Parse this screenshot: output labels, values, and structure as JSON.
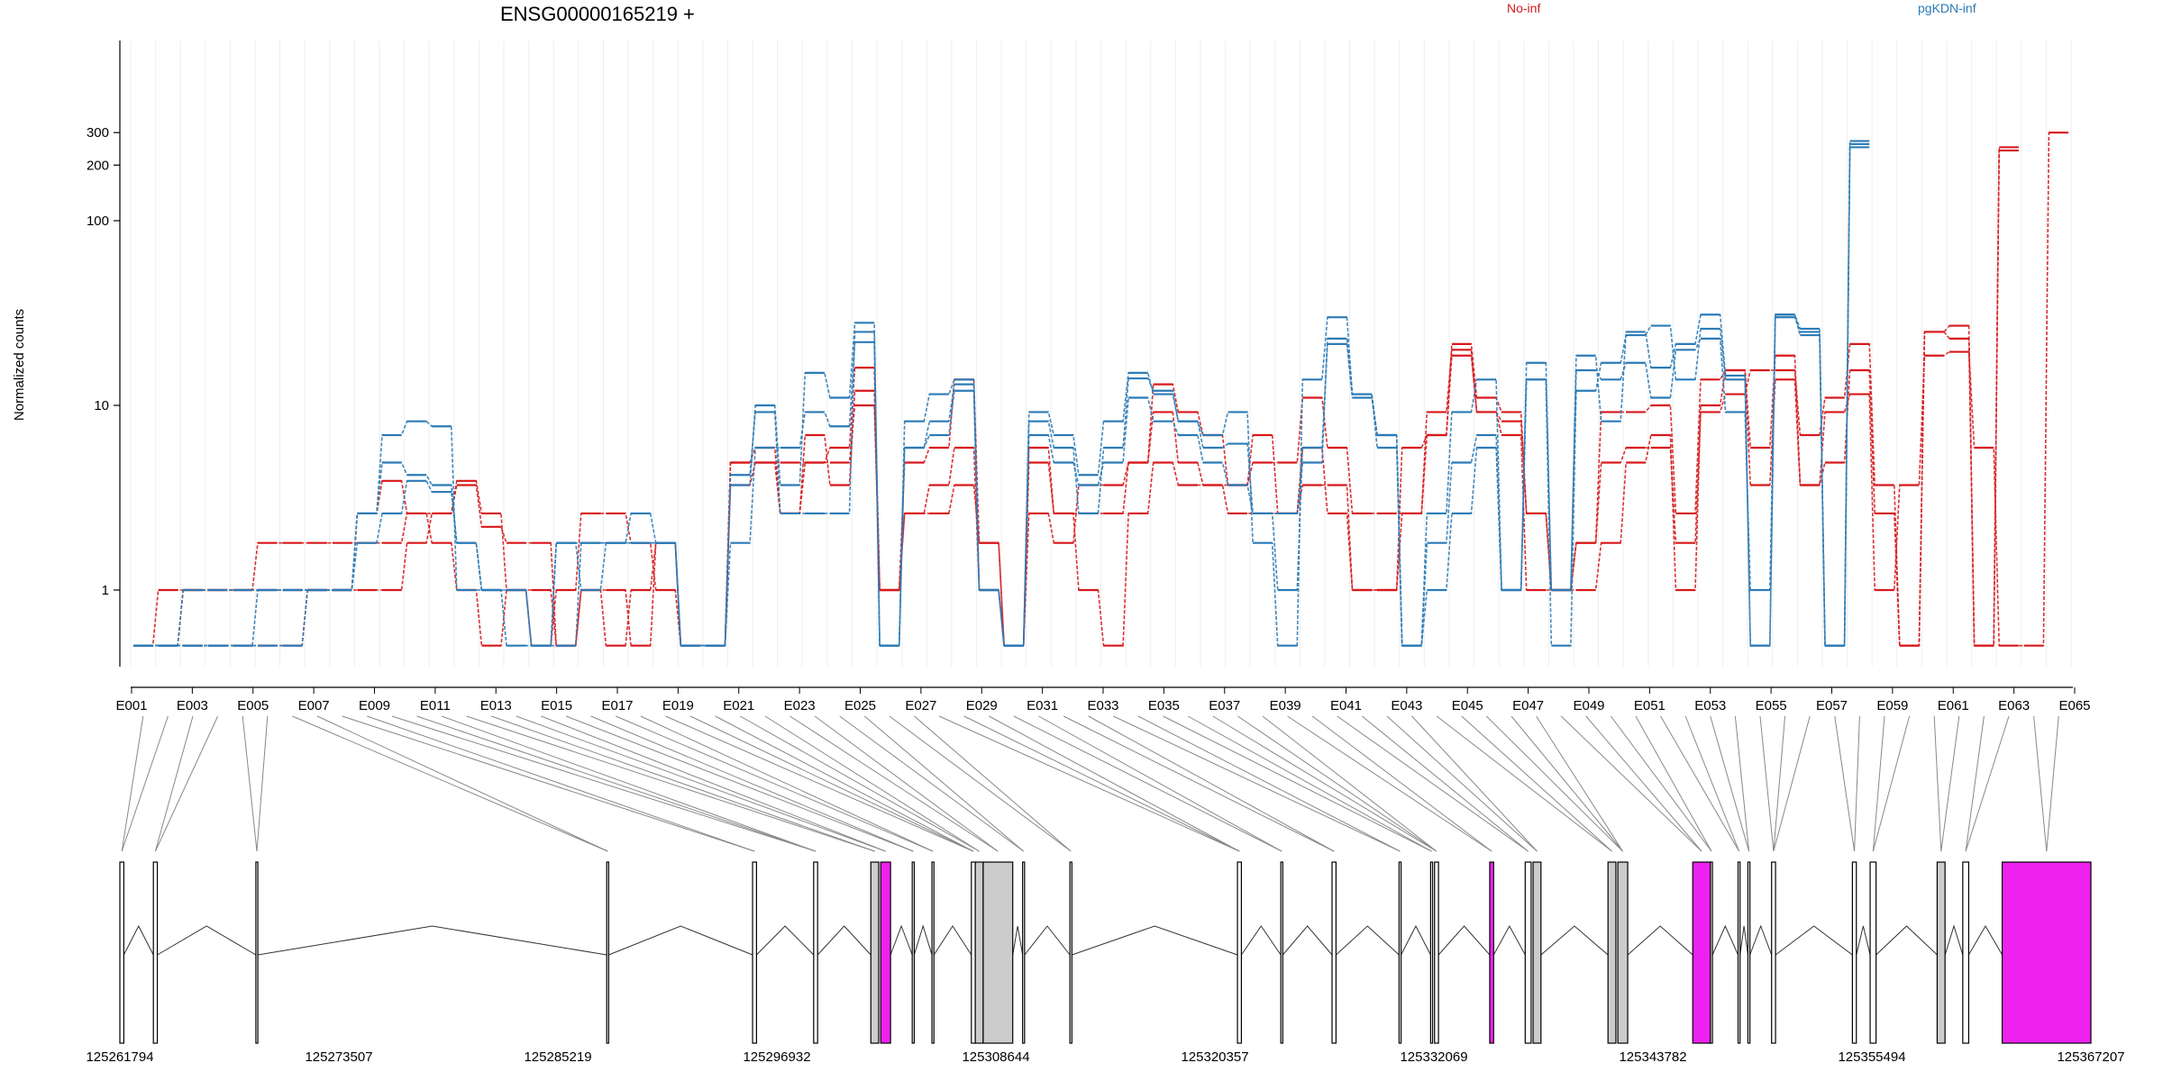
{
  "chart_data": {
    "type": "line",
    "title": "ENSG00000165219 +",
    "ylabel": "Normalized counts",
    "y_scale": "log",
    "y_ticks": [
      1,
      10,
      100,
      200,
      300
    ],
    "y_tick_labels": [
      "1",
      "10",
      "100",
      "200",
      "300"
    ],
    "legend": [
      {
        "label": "No-inf",
        "color": "#d7191c"
      },
      {
        "label": "pgKDN-inf",
        "color": "#2c7bb6"
      }
    ],
    "exon_labels": [
      "E001",
      "E003",
      "E005",
      "E007",
      "E009",
      "E011",
      "E013",
      "E015",
      "E017",
      "E019",
      "E021",
      "E023",
      "E025",
      "E027",
      "E029",
      "E031",
      "E033",
      "E035",
      "E037",
      "E039",
      "E041",
      "E043",
      "E045",
      "E047",
      "E049",
      "E051",
      "E053",
      "E055",
      "E057",
      "E059",
      "E061",
      "E063",
      "E065"
    ],
    "genomic_ticks": [
      "125261794",
      "125273507",
      "125285219",
      "125296932",
      "125308644",
      "125320357",
      "125332069",
      "125343782",
      "125355494",
      "125367207"
    ],
    "genomic_range": [
      125261794,
      125367207
    ],
    "series": [
      {
        "group": "No-inf",
        "color": "#d7191c",
        "values": [
          0.5,
          1,
          1,
          1,
          1,
          1.8,
          1.8,
          1.8,
          1.8,
          1.8,
          1.8,
          2.6,
          2.6,
          3.7,
          2.2,
          1.8,
          1.8,
          0.5,
          1,
          1,
          0.5,
          1.8,
          0.5,
          0.5,
          3.7,
          4.9,
          2.6,
          4.9,
          5.9,
          16,
          1,
          2.6,
          3.7,
          5.9,
          1,
          0.5,
          5.9,
          2.6,
          1,
          0.5,
          2.6,
          4.9,
          3.7,
          3.7,
          3.7,
          4.9,
          4.9,
          11,
          5.9,
          2.6,
          2.6,
          2.6,
          9.2,
          20,
          9.2,
          8.2,
          2.6,
          1,
          1,
          1.8,
          4.9,
          6.9,
          1,
          10,
          15.5,
          5.9,
          18.6,
          3.7,
          9.2,
          11.5,
          1,
          3.7,
          18.6,
          19.5,
          5.9,
          0.5,
          0.5,
          300
        ]
      },
      {
        "group": "No-inf",
        "color": "#d7191c",
        "values": [
          0.5,
          0.5,
          1,
          1,
          1,
          1,
          1,
          1,
          1,
          1,
          1,
          1.8,
          2.6,
          3.9,
          2.6,
          1,
          1,
          0.5,
          1,
          0.5,
          1,
          1.8,
          0.5,
          0.5,
          4.9,
          5.9,
          2.6,
          6.9,
          3.7,
          12,
          1,
          4.9,
          5.9,
          13.8,
          1.8,
          0.5,
          4.9,
          2.6,
          2.6,
          2.6,
          4.9,
          13,
          9.2,
          6.9,
          3.7,
          6.9,
          2.6,
          3.7,
          3.7,
          1,
          1,
          2.6,
          6.9,
          18.6,
          9.2,
          6.9,
          1,
          1,
          1.8,
          4.9,
          5.9,
          5.9,
          1.8,
          9.2,
          11.5,
          15.5,
          15.5,
          6.9,
          11,
          21.5,
          3.7,
          0.5,
          25,
          27,
          0.5,
          240
        ]
      },
      {
        "group": "No-inf",
        "color": "#d7191c",
        "values": [
          0.5,
          0.5,
          0.5,
          0.5,
          0.5,
          0.5,
          0.5,
          1,
          1,
          2.6,
          3.9,
          2.6,
          1.8,
          1,
          0.5,
          1,
          0.5,
          1,
          2.6,
          2.6,
          1.8,
          1,
          0.5,
          0.5,
          4.9,
          4.9,
          4.9,
          4.9,
          4.9,
          10,
          1,
          2.6,
          2.6,
          3.7,
          1.8,
          0.5,
          2.6,
          1.8,
          3.7,
          3.7,
          4.9,
          9.2,
          4.9,
          3.7,
          2.6,
          2.6,
          2.6,
          5.9,
          2.6,
          1,
          1,
          5.9,
          6.9,
          21.5,
          11,
          9.2,
          2.6,
          1,
          1.8,
          9.2,
          9.2,
          10,
          2.6,
          13.8,
          15.5,
          3.7,
          13.8,
          3.7,
          4.9,
          15.5,
          2.6,
          0.5,
          25,
          23,
          0.5,
          250
        ]
      },
      {
        "group": "pgKDN-inf",
        "color": "#2c7bb6",
        "values": [
          0.5,
          0.5,
          0.5,
          0.5,
          0.5,
          0.5,
          0.5,
          1,
          1,
          2.6,
          6.9,
          8.2,
          7.7,
          1,
          1,
          1,
          0.5,
          0.5,
          1.8,
          1.8,
          2.6,
          1.8,
          0.5,
          0.5,
          3.7,
          10,
          3.7,
          15,
          11,
          28,
          0.5,
          8.2,
          11.5,
          13.8,
          1,
          0.5,
          9.2,
          6.9,
          4.2,
          8.2,
          15,
          11.5,
          8.2,
          6.9,
          9.2,
          1.8,
          0.5,
          13.8,
          30,
          11.5,
          6.9,
          0.5,
          2.6,
          9.2,
          13.8,
          1,
          17,
          1,
          18.6,
          8.2,
          25,
          16,
          21.5,
          31,
          14.5,
          0.5,
          31,
          26,
          0.5,
          260
        ]
      },
      {
        "group": "pgKDN-inf",
        "color": "#2c7bb6",
        "values": [
          0.5,
          0.5,
          1,
          1,
          1,
          1,
          1,
          1,
          1,
          2.6,
          4.9,
          4.2,
          3.7,
          1.8,
          1,
          1,
          0.5,
          1.8,
          1.8,
          1.8,
          1.8,
          1.8,
          0.5,
          0.5,
          1.8,
          5.9,
          5.9,
          9.2,
          7.7,
          22,
          0.5,
          5.9,
          6.9,
          12,
          1,
          0.5,
          6.9,
          4.9,
          3.7,
          4.9,
          11,
          8.2,
          6.9,
          4.9,
          3.7,
          2.6,
          1,
          5.9,
          21.5,
          11,
          6.9,
          0.5,
          1.8,
          4.9,
          6.9,
          1,
          13.8,
          1,
          15.5,
          13.8,
          17,
          11,
          20,
          23,
          9.2,
          1,
          30,
          25,
          0.5,
          250
        ]
      },
      {
        "group": "pgKDN-inf",
        "color": "#2c7bb6",
        "values": [
          0.5,
          0.5,
          0.5,
          0.5,
          0.5,
          1,
          1,
          1,
          1,
          1.8,
          2.6,
          3.9,
          3.4,
          1.8,
          1,
          0.5,
          0.5,
          1.8,
          1,
          1.8,
          1.8,
          1.8,
          0.5,
          0.5,
          4.2,
          9.2,
          2.6,
          2.6,
          2.6,
          25,
          0.5,
          5.9,
          8.2,
          13,
          1,
          0.5,
          8.2,
          5.9,
          2.6,
          5.9,
          14,
          12,
          8.2,
          5.9,
          6.2,
          2.6,
          2.6,
          4.9,
          23,
          11.5,
          5.9,
          0.5,
          1,
          2.6,
          5.9,
          1,
          13.8,
          0.5,
          12,
          17,
          24,
          27,
          13.8,
          26,
          13.8,
          0.5,
          31,
          24,
          0.5,
          270
        ]
      }
    ],
    "highlighted_exons": [
      "E025",
      "E043",
      "E053",
      "E065"
    ],
    "highlight_color": "#ee22ee"
  }
}
